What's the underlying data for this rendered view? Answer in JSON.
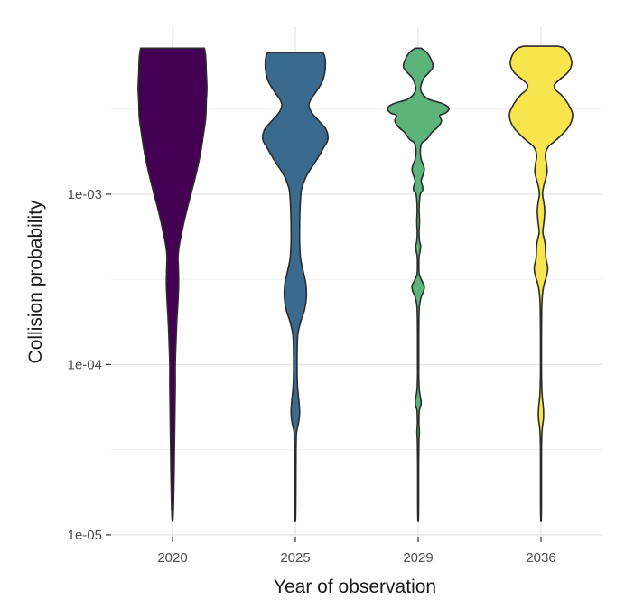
{
  "chart_data": {
    "type": "violin",
    "xlabel": "Year of observation",
    "ylabel": "Collision probability",
    "y_scale": "log10",
    "ylim": [
      1.2e-05,
      0.0075
    ],
    "y_ticks": [
      {
        "value": 0.001,
        "label": "1e-03"
      },
      {
        "value": 0.0001,
        "label": "1e-04"
      },
      {
        "value": 1e-05,
        "label": "1e-05"
      }
    ],
    "grid": true,
    "legend": "none",
    "categories": [
      "2020",
      "2025",
      "2029",
      "2036"
    ],
    "violins": [
      {
        "category": "2020",
        "color": "#440154",
        "profile": [
          [
            0.0072,
            0.52
          ],
          [
            0.0064,
            0.54
          ],
          [
            0.0052,
            0.55
          ],
          [
            0.0042,
            0.56
          ],
          [
            0.0035,
            0.55
          ],
          [
            0.0028,
            0.54
          ],
          [
            0.0022,
            0.5
          ],
          [
            0.0017,
            0.45
          ],
          [
            0.0013,
            0.38
          ],
          [
            0.001,
            0.3
          ],
          [
            0.0008,
            0.23
          ],
          [
            0.00062,
            0.16
          ],
          [
            0.0005,
            0.11
          ],
          [
            0.00043,
            0.09
          ],
          [
            0.00037,
            0.095
          ],
          [
            0.0003,
            0.1
          ],
          [
            0.00024,
            0.09
          ],
          [
            0.00018,
            0.07
          ],
          [
            0.00013,
            0.055
          ],
          [
            0.0001,
            0.045
          ],
          [
            7.5e-05,
            0.045
          ],
          [
            5.5e-05,
            0.04
          ],
          [
            4e-05,
            0.035
          ],
          [
            3e-05,
            0.03
          ],
          [
            2.2e-05,
            0.025
          ],
          [
            1.6e-05,
            0.018
          ],
          [
            1.3e-05,
            0.01
          ],
          [
            1.2e-05,
            0.004
          ]
        ]
      },
      {
        "category": "2025",
        "color": "#3b6a8f",
        "profile": [
          [
            0.0068,
            0.45
          ],
          [
            0.0064,
            0.48
          ],
          [
            0.0058,
            0.49
          ],
          [
            0.0052,
            0.48
          ],
          [
            0.0046,
            0.44
          ],
          [
            0.004,
            0.34
          ],
          [
            0.0036,
            0.25
          ],
          [
            0.0033,
            0.22
          ],
          [
            0.003,
            0.27
          ],
          [
            0.0027,
            0.38
          ],
          [
            0.0024,
            0.5
          ],
          [
            0.0021,
            0.53
          ],
          [
            0.0019,
            0.47
          ],
          [
            0.0016,
            0.35
          ],
          [
            0.0013,
            0.19
          ],
          [
            0.0011,
            0.11
          ],
          [
            0.001,
            0.09
          ],
          [
            0.0008,
            0.075
          ],
          [
            0.00065,
            0.07
          ],
          [
            0.00052,
            0.07
          ],
          [
            0.00042,
            0.085
          ],
          [
            0.00035,
            0.13
          ],
          [
            0.0003,
            0.17
          ],
          [
            0.00025,
            0.18
          ],
          [
            0.00021,
            0.15
          ],
          [
            0.00018,
            0.09
          ],
          [
            0.00015,
            0.04
          ],
          [
            0.00012,
            0.03
          ],
          [
            9.5e-05,
            0.028
          ],
          [
            7.5e-05,
            0.035
          ],
          [
            6e-05,
            0.06
          ],
          [
            5.2e-05,
            0.07
          ],
          [
            4.5e-05,
            0.05
          ],
          [
            4e-05,
            0.02
          ],
          [
            3.2e-05,
            0.012
          ],
          [
            2.2e-05,
            0.01
          ],
          [
            1.5e-05,
            0.008
          ],
          [
            1.2e-05,
            0.004
          ]
        ]
      },
      {
        "category": "2029",
        "color": "#5cb47a",
        "profile": [
          [
            0.0072,
            0.05
          ],
          [
            0.0068,
            0.14
          ],
          [
            0.0062,
            0.21
          ],
          [
            0.0056,
            0.24
          ],
          [
            0.0052,
            0.18
          ],
          [
            0.0048,
            0.09
          ],
          [
            0.0044,
            0.05
          ],
          [
            0.0041,
            0.04
          ],
          [
            0.0038,
            0.09
          ],
          [
            0.0036,
            0.18
          ],
          [
            0.0034,
            0.4
          ],
          [
            0.0032,
            0.5
          ],
          [
            0.003,
            0.45
          ],
          [
            0.0029,
            0.35
          ],
          [
            0.0027,
            0.38
          ],
          [
            0.0025,
            0.33
          ],
          [
            0.0023,
            0.22
          ],
          [
            0.0021,
            0.14
          ],
          [
            0.002,
            0.06
          ],
          [
            0.0018,
            0.035
          ],
          [
            0.0016,
            0.05
          ],
          [
            0.0015,
            0.08
          ],
          [
            0.0014,
            0.1
          ],
          [
            0.0013,
            0.08
          ],
          [
            0.0012,
            0.05
          ],
          [
            0.0011,
            0.075
          ],
          [
            0.00105,
            0.07
          ],
          [
            0.001,
            0.035
          ],
          [
            0.0009,
            0.02
          ],
          [
            0.0008,
            0.016
          ],
          [
            0.0007,
            0.022
          ],
          [
            0.00065,
            0.02
          ],
          [
            0.0006,
            0.015
          ],
          [
            0.00053,
            0.022
          ],
          [
            0.0005,
            0.04
          ],
          [
            0.00047,
            0.035
          ],
          [
            0.00043,
            0.015
          ],
          [
            0.00038,
            0.012
          ],
          [
            0.00034,
            0.018
          ],
          [
            0.00031,
            0.06
          ],
          [
            0.00029,
            0.1
          ],
          [
            0.00027,
            0.09
          ],
          [
            0.00025,
            0.05
          ],
          [
            0.00022,
            0.02
          ],
          [
            0.00018,
            0.012
          ],
          [
            0.00013,
            0.01
          ],
          [
            0.0001,
            0.01
          ],
          [
            8.5e-05,
            0.01
          ],
          [
            7e-05,
            0.02
          ],
          [
            6.2e-05,
            0.045
          ],
          [
            5.8e-05,
            0.045
          ],
          [
            5.4e-05,
            0.02
          ],
          [
            4.5e-05,
            0.012
          ],
          [
            4e-05,
            0.02
          ],
          [
            3.5e-05,
            0.012
          ],
          [
            2.5e-05,
            0.008
          ],
          [
            1.5e-05,
            0.008
          ],
          [
            1.2e-05,
            0.004
          ]
        ]
      },
      {
        "category": "2036",
        "color": "#f8e44d",
        "profile": [
          [
            0.0074,
            0.28
          ],
          [
            0.0072,
            0.38
          ],
          [
            0.0068,
            0.44
          ],
          [
            0.0064,
            0.48
          ],
          [
            0.0058,
            0.5
          ],
          [
            0.0052,
            0.44
          ],
          [
            0.0047,
            0.3
          ],
          [
            0.0044,
            0.22
          ],
          [
            0.0041,
            0.24
          ],
          [
            0.0038,
            0.34
          ],
          [
            0.0034,
            0.44
          ],
          [
            0.003,
            0.51
          ],
          [
            0.0027,
            0.5
          ],
          [
            0.0024,
            0.42
          ],
          [
            0.0021,
            0.26
          ],
          [
            0.0019,
            0.12
          ],
          [
            0.0017,
            0.07
          ],
          [
            0.0015,
            0.09
          ],
          [
            0.00135,
            0.1
          ],
          [
            0.00125,
            0.08
          ],
          [
            0.0011,
            0.04
          ],
          [
            0.001,
            0.025
          ],
          [
            0.0009,
            0.045
          ],
          [
            0.0008,
            0.06
          ],
          [
            0.0007,
            0.05
          ],
          [
            0.0006,
            0.03
          ],
          [
            0.00055,
            0.05
          ],
          [
            0.0005,
            0.07
          ],
          [
            0.00042,
            0.08
          ],
          [
            0.00037,
            0.11
          ],
          [
            0.00033,
            0.09
          ],
          [
            0.0003,
            0.055
          ],
          [
            0.00027,
            0.03
          ],
          [
            0.00023,
            0.015
          ],
          [
            0.00018,
            0.01
          ],
          [
            0.00013,
            0.008
          ],
          [
            0.0001,
            0.008
          ],
          [
            8e-05,
            0.01
          ],
          [
            6.5e-05,
            0.02
          ],
          [
            5.5e-05,
            0.04
          ],
          [
            4.8e-05,
            0.04
          ],
          [
            4.2e-05,
            0.02
          ],
          [
            3.5e-05,
            0.01
          ],
          [
            2.5e-05,
            0.008
          ],
          [
            1.5e-05,
            0.008
          ],
          [
            1.2e-05,
            0.004
          ]
        ]
      }
    ]
  }
}
